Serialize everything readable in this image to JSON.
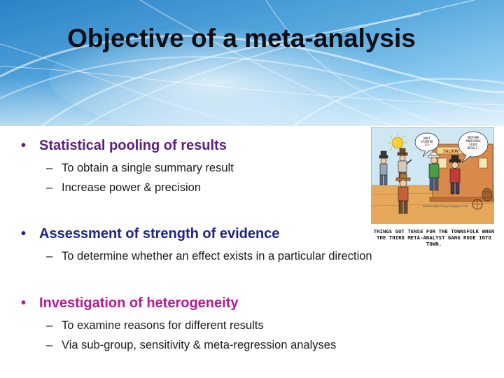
{
  "slide": {
    "title": "Objective of a meta-analysis",
    "sections": [
      {
        "heading": "Statistical pooling of results",
        "color": "#5c1d7c",
        "points": [
          "To obtain a single summary result",
          "Increase power & precision"
        ]
      },
      {
        "heading": "Assessment of strength of evidence",
        "color": "#1e2382",
        "points": [
          "To determine whether an effect exists in a particular direction"
        ]
      },
      {
        "heading": "Investigation of heterogeneity",
        "color": "#b51a91",
        "points": [
          "To examine reasons for different results",
          "Via sub-group, sensitivity & meta-regression analyses"
        ]
      }
    ],
    "bullet_symbol": "•",
    "dash_symbol": "–",
    "cartoon": {
      "bubble_left": "WHAT STARTED IT?",
      "bubble_right": "ANOTHER AMBIGUOUS STUDY RESULT.",
      "saloon_sign": "SALOON",
      "credit": "Statistically-Funny.blogspot.com",
      "caption": "THINGS GOT TENSE FOR THE TOWNSFOLK WHEN THE THIRD META-ANALYST GANG RODE INTO TOWN."
    }
  }
}
